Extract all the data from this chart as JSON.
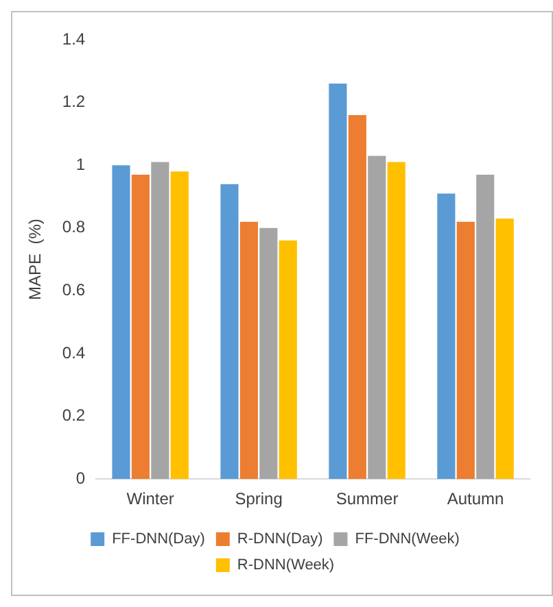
{
  "chart_data": {
    "type": "bar",
    "ylabel": "MAPE  (%)",
    "categories": [
      "Winter",
      "Spring",
      "Summer",
      "Autumn"
    ],
    "series": [
      {
        "name": "FF-DNN(Day)",
        "color": "#5b9bd5",
        "values": [
          1.0,
          0.94,
          1.26,
          0.91
        ]
      },
      {
        "name": "R-DNN(Day)",
        "color": "#ed7d31",
        "values": [
          0.97,
          0.82,
          1.16,
          0.82
        ]
      },
      {
        "name": "FF-DNN(Week)",
        "color": "#a5a5a5",
        "values": [
          1.01,
          0.8,
          1.03,
          0.97
        ]
      },
      {
        "name": "R-DNN(Week)",
        "color": "#ffc000",
        "values": [
          0.98,
          0.76,
          1.01,
          0.83
        ]
      }
    ],
    "ylim": [
      0,
      1.4
    ],
    "yticks": [
      0,
      0.2,
      0.4,
      0.6,
      0.8,
      1,
      1.2,
      1.4
    ],
    "grid": false,
    "legend": "bottom"
  }
}
